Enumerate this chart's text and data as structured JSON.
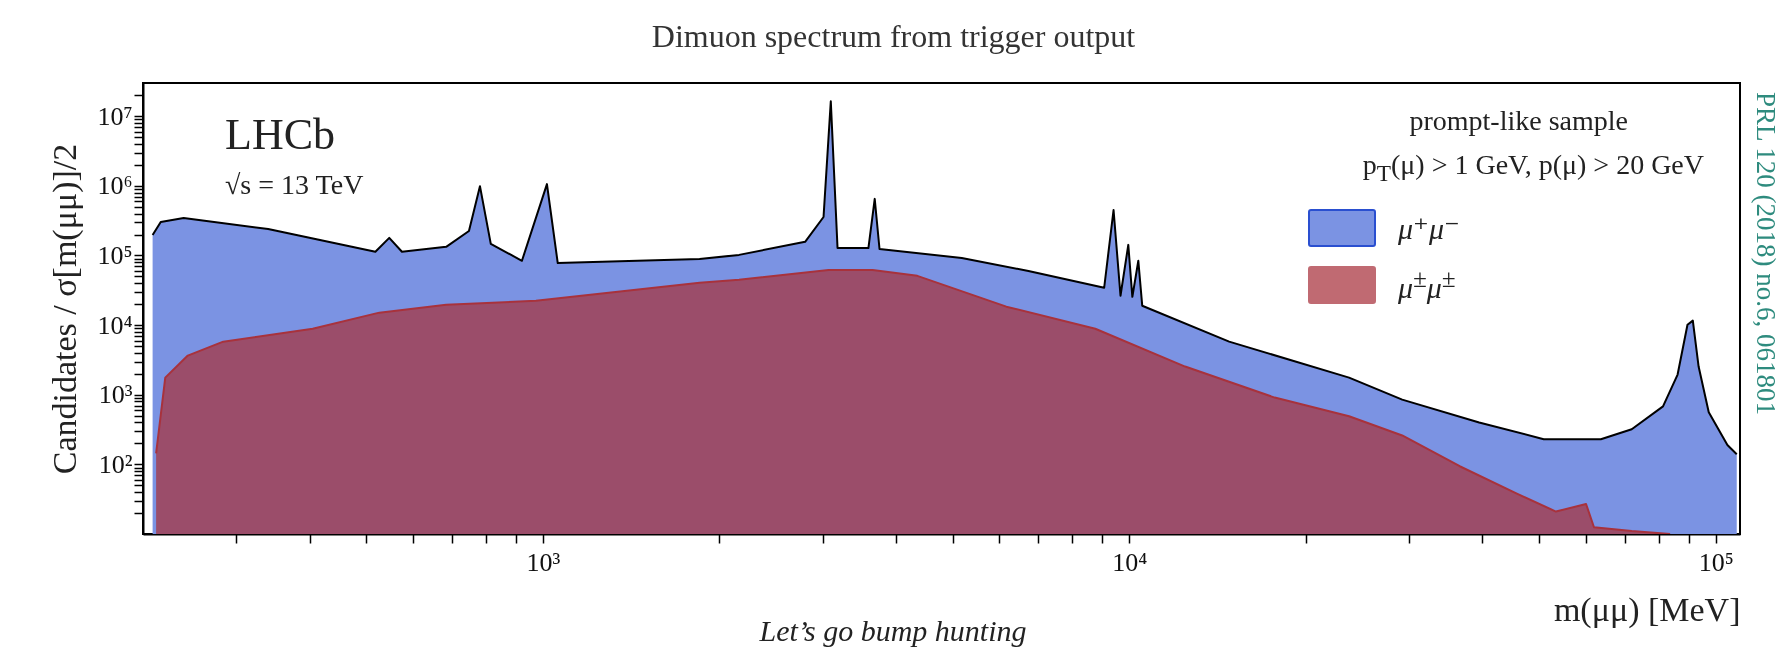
{
  "chart_data": {
    "type": "area",
    "title": "Dimuon spectrum from trigger output",
    "xlabel": "m(μμ)  [MeV]",
    "ylabel": "Candidates / σ[m(μμ)]/2",
    "log": "xy",
    "legend": "top right",
    "xlim": [
      208,
      110000
    ],
    "ylim": [
      10,
      30000000
    ],
    "xticks": [
      {
        "value": 300,
        "label": null
      },
      {
        "value": 400,
        "label": null
      },
      {
        "value": 500,
        "label": null
      },
      {
        "value": 600,
        "label": null
      },
      {
        "value": 700,
        "label": null
      },
      {
        "value": 800,
        "label": null
      },
      {
        "value": 900,
        "label": null
      },
      {
        "value": 1000,
        "label": "10³"
      },
      {
        "value": 2000,
        "label": null
      },
      {
        "value": 3000,
        "label": null
      },
      {
        "value": 4000,
        "label": null
      },
      {
        "value": 5000,
        "label": null
      },
      {
        "value": 6000,
        "label": null
      },
      {
        "value": 7000,
        "label": null
      },
      {
        "value": 8000,
        "label": null
      },
      {
        "value": 9000,
        "label": null
      },
      {
        "value": 10000,
        "label": "10⁴"
      },
      {
        "value": 20000,
        "label": null
      },
      {
        "value": 30000,
        "label": null
      },
      {
        "value": 40000,
        "label": null
      },
      {
        "value": 50000,
        "label": null
      },
      {
        "value": 60000,
        "label": null
      },
      {
        "value": 70000,
        "label": null
      },
      {
        "value": 80000,
        "label": null
      },
      {
        "value": 90000,
        "label": null
      },
      {
        "value": 100000,
        "label": "10⁵"
      }
    ],
    "yticks": [
      {
        "value": 20,
        "label": null
      },
      {
        "value": 30,
        "label": null
      },
      {
        "value": 40,
        "label": null
      },
      {
        "value": 50,
        "label": null
      },
      {
        "value": 60,
        "label": null
      },
      {
        "value": 70,
        "label": null
      },
      {
        "value": 80,
        "label": null
      },
      {
        "value": 90,
        "label": null
      },
      {
        "value": 100,
        "label": "10²"
      },
      {
        "value": 200,
        "label": null
      },
      {
        "value": 300,
        "label": null
      },
      {
        "value": 400,
        "label": null
      },
      {
        "value": 500,
        "label": null
      },
      {
        "value": 600,
        "label": null
      },
      {
        "value": 700,
        "label": null
      },
      {
        "value": 800,
        "label": null
      },
      {
        "value": 900,
        "label": null
      },
      {
        "value": 1000,
        "label": "10³"
      },
      {
        "value": 2000,
        "label": null
      },
      {
        "value": 3000,
        "label": null
      },
      {
        "value": 4000,
        "label": null
      },
      {
        "value": 5000,
        "label": null
      },
      {
        "value": 6000,
        "label": null
      },
      {
        "value": 7000,
        "label": null
      },
      {
        "value": 8000,
        "label": null
      },
      {
        "value": 9000,
        "label": null
      },
      {
        "value": 10000,
        "label": "10⁴"
      },
      {
        "value": 20000,
        "label": null
      },
      {
        "value": 30000,
        "label": null
      },
      {
        "value": 40000,
        "label": null
      },
      {
        "value": 50000,
        "label": null
      },
      {
        "value": 60000,
        "label": null
      },
      {
        "value": 70000,
        "label": null
      },
      {
        "value": 80000,
        "label": null
      },
      {
        "value": 90000,
        "label": null
      },
      {
        "value": 100000,
        "label": "10⁵"
      },
      {
        "value": 200000,
        "label": null
      },
      {
        "value": 300000,
        "label": null
      },
      {
        "value": 400000,
        "label": null
      },
      {
        "value": 500000,
        "label": null
      },
      {
        "value": 600000,
        "label": null
      },
      {
        "value": 700000,
        "label": null
      },
      {
        "value": 800000,
        "label": null
      },
      {
        "value": 900000,
        "label": null
      },
      {
        "value": 1000000,
        "label": "10⁶"
      },
      {
        "value": 2000000,
        "label": null
      },
      {
        "value": 3000000,
        "label": null
      },
      {
        "value": 4000000,
        "label": null
      },
      {
        "value": 5000000,
        "label": null
      },
      {
        "value": 6000000,
        "label": null
      },
      {
        "value": 7000000,
        "label": null
      },
      {
        "value": 8000000,
        "label": null
      },
      {
        "value": 9000000,
        "label": null
      },
      {
        "value": 10000000,
        "label": "10⁷"
      },
      {
        "value": 20000000,
        "label": null
      }
    ],
    "annotations": [
      "LHCb",
      "√s = 13 TeV",
      "prompt-like sample",
      "p$_{T}$(μ) > 1 GeV, p(μ) > 20 GeV",
      "PRL 120 (2018) no.6, 061801",
      "Let’s go bump hunting"
    ],
    "series": [
      {
        "name": "μ⁺μ⁻",
        "color": "#7b93e3",
        "x": [
          216,
          223,
          244,
          340,
          518,
          547,
          575,
          684,
          748,
          781,
          815,
          921,
          1016,
          1060,
          1850,
          2160,
          2800,
          3010,
          3097,
          3180,
          3590,
          3680,
          3750,
          5180,
          6730,
          9060,
          9400,
          9660,
          9960,
          10120,
          10360,
          10520,
          14800,
          23700,
          29200,
          39500,
          50900,
          63700,
          71900,
          81300,
          86100,
          89500,
          91400,
          93500,
          97300,
          104700,
          108600
        ],
        "values": [
          197000,
          303000,
          346000,
          240000,
          113000,
          179000,
          113000,
          133000,
          225000,
          990000,
          147000,
          84000,
          1060000,
          78000,
          89000,
          102000,
          157000,
          357000,
          16400000,
          128000,
          128000,
          650000,
          124000,
          92000,
          60000,
          34400,
          450000,
          26400,
          142000,
          25500,
          84000,
          19000,
          5800,
          1760,
          850,
          400,
          230,
          230,
          320,
          680,
          1950,
          10100,
          11600,
          2540,
          560,
          190,
          140
        ]
      },
      {
        "name": "μ$^{±}$μ$^{±}$",
        "color": "#a8323c",
        "x": [
          219,
          227,
          248,
          285,
          405,
          526,
          684,
          973,
          1850,
          2160,
          3070,
          3650,
          4350,
          6170,
          8750,
          12450,
          17700,
          23700,
          29200,
          36600,
          45800,
          53400,
          60100,
          62000,
          71900,
          83600
        ],
        "values": [
          144,
          1760,
          3650,
          5780,
          8870,
          15100,
          19600,
          22400,
          40500,
          44700,
          62000,
          62000,
          51000,
          18400,
          8870,
          2540,
          910,
          490,
          260,
          94,
          38,
          21,
          27,
          12.5,
          11,
          10
        ]
      }
    ]
  }
}
